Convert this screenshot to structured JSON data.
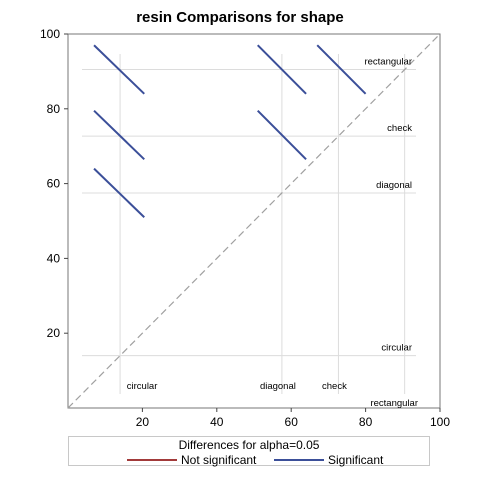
{
  "chart_data": {
    "type": "diffogram",
    "title": "resin Comparisons for shape",
    "xlim": [
      0,
      100
    ],
    "ylim": [
      0,
      100
    ],
    "x_ticks": [
      20,
      40,
      60,
      80,
      100
    ],
    "y_ticks": [
      20,
      40,
      60,
      80,
      100
    ],
    "reference_lines": [
      {
        "label": "circular",
        "value": 14.0
      },
      {
        "label": "diagonal",
        "value": 57.5
      },
      {
        "label": "check",
        "value": 72.7
      },
      {
        "label": "rectangular",
        "value": 90.5
      }
    ],
    "comparisons": [
      {
        "x1": 7,
        "y1": 97,
        "x2": 20.5,
        "y2": 84,
        "significant": true
      },
      {
        "x1": 7,
        "y1": 79.5,
        "x2": 20.5,
        "y2": 66.5,
        "significant": true
      },
      {
        "x1": 7,
        "y1": 64,
        "x2": 20.5,
        "y2": 51,
        "significant": true
      },
      {
        "x1": 51,
        "y1": 97,
        "x2": 64,
        "y2": 84,
        "significant": true
      },
      {
        "x1": 51,
        "y1": 79.5,
        "x2": 64,
        "y2": 66.5,
        "significant": true
      },
      {
        "x1": 67,
        "y1": 97,
        "x2": 80,
        "y2": 84,
        "significant": true
      }
    ],
    "grid": false,
    "legend": {
      "title": "Differences for alpha=0.05",
      "items": [
        {
          "label": "Not significant",
          "color": "#a23a3a"
        },
        {
          "label": "Significant",
          "color": "#3b4f99"
        }
      ],
      "position": "bottom"
    },
    "colors": {
      "significant": "#3b4f99",
      "not_significant": "#a23a3a",
      "diagonal": "#a0a0a0",
      "reference": "#dcdcdc"
    }
  }
}
